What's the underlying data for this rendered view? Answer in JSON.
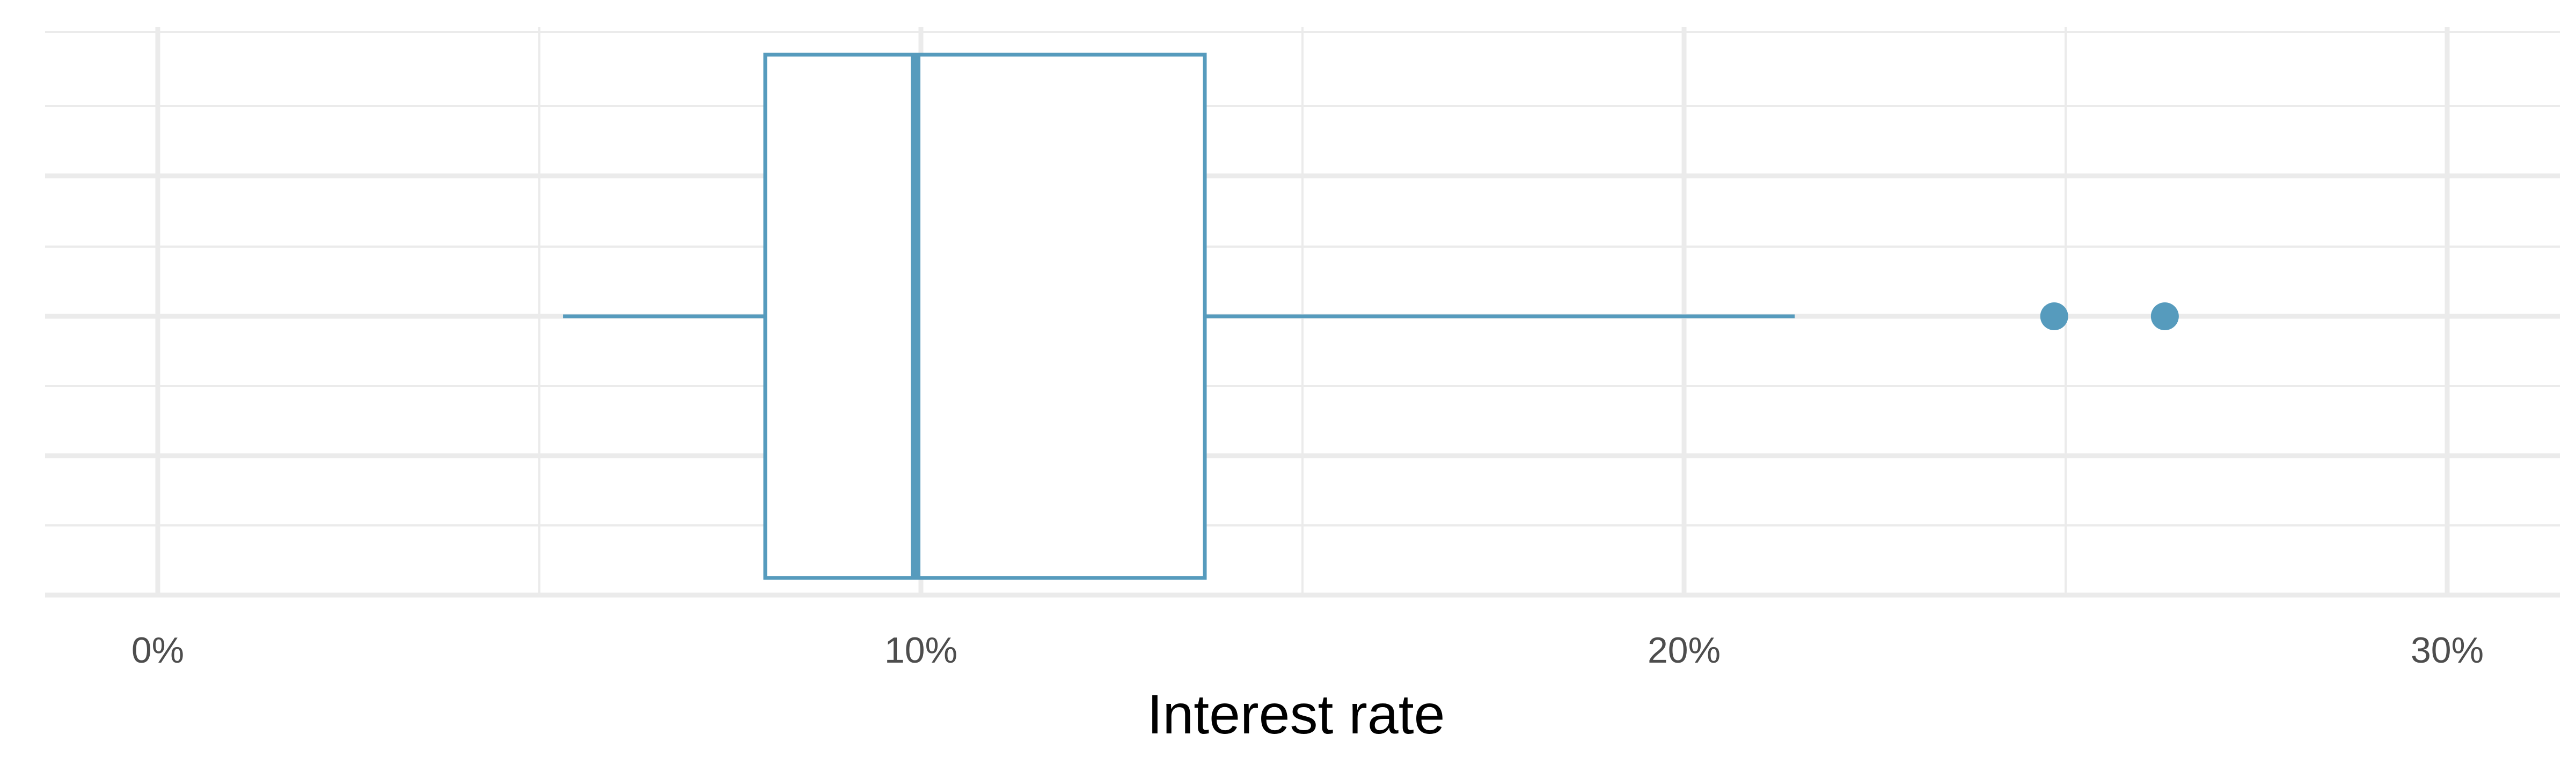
{
  "chart_data": {
    "type": "boxplot",
    "orientation": "horizontal",
    "title": "",
    "xlabel": "Interest rate",
    "ylabel": "",
    "xlim": [
      -1.5,
      31.5
    ],
    "x_ticks": [
      0,
      10,
      20,
      30
    ],
    "x_tick_labels": [
      "0%",
      "10%",
      "20%",
      "30%"
    ],
    "x_minor_ticks": [
      5,
      15,
      25
    ],
    "grid": true,
    "legend": "none",
    "box": {
      "whisker_low": 5.31,
      "q1": 7.96,
      "median": 9.93,
      "q3": 13.72,
      "whisker_high": 21.45
    },
    "outliers": [
      24.85,
      26.3
    ],
    "colors": {
      "box": "#569BBD",
      "grid": "#EBEBEB",
      "background": "#FFFFFF"
    }
  }
}
